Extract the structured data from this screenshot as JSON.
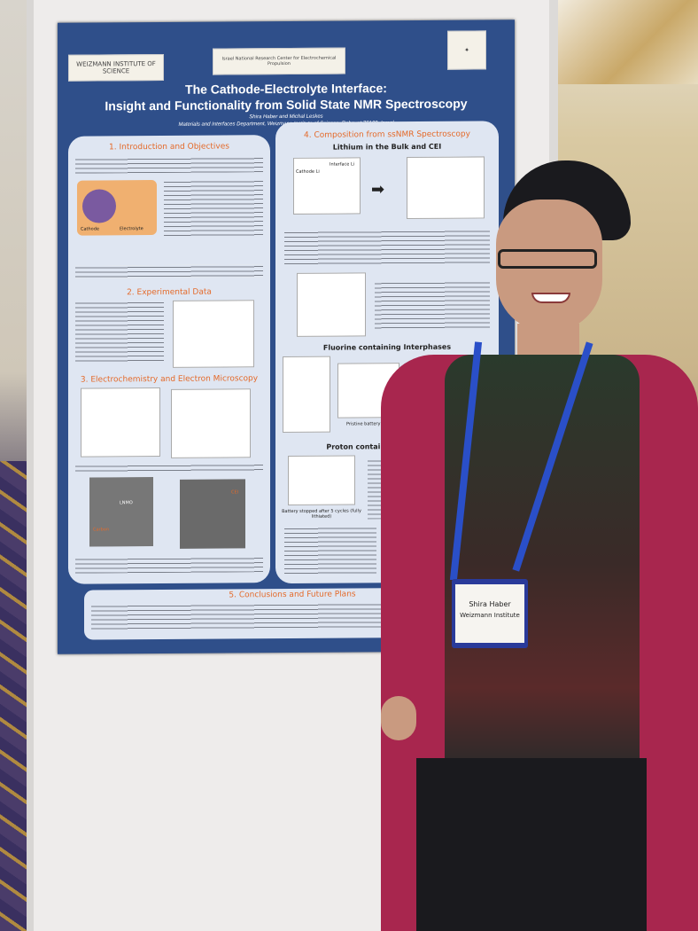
{
  "poster": {
    "logos": {
      "weizmann": "WEIZMANN INSTITUTE OF SCIENCE",
      "center": "Israel National Research Center for Electrochemical Propulsion"
    },
    "title_line1": "The Cathode-Electrolyte Interface:",
    "title_line2": "Insight and Functionality from Solid State NMR Spectroscopy",
    "authors": "Shira Haber and Michal Leskes",
    "affiliation": "Materials and Interfaces Department, Weizmann Institute of Science, Rehovot 76100, Israel",
    "sections": {
      "intro": "1. Introduction and Objectives",
      "experimental": "2. Experimental Data",
      "electrochem": "3. Electrochemistry and Electron Microscopy",
      "composition": "4. Composition from ssNMR Spectroscopy",
      "lithium": "Lithium in the Bulk and CEI",
      "fluorine": "Fluorine containing Interphases",
      "proton": "Proton containing Interphases",
      "conclusions": "5. Conclusions and Future Plans"
    },
    "figure_labels": {
      "cathode": "Cathode",
      "electrolyte": "Electrolyte",
      "cathode_li": "Cathode Li",
      "interface_li": "Interface Li",
      "lnmo": "LNMO",
      "carbon": "Carbon",
      "cei": "CEI",
      "pristine": "Pristine battery",
      "battery_stopped": "Battery stopped after 5 cycles (fully lithiated)"
    }
  },
  "badge": {
    "name": "Shira Haber",
    "institute": "Weizmann Institute"
  },
  "colors": {
    "poster_blue": "#2f4f8a",
    "section_heading": "#e46a2a",
    "cardigan": "#a8264e",
    "lanyard": "#2a4fc8"
  }
}
